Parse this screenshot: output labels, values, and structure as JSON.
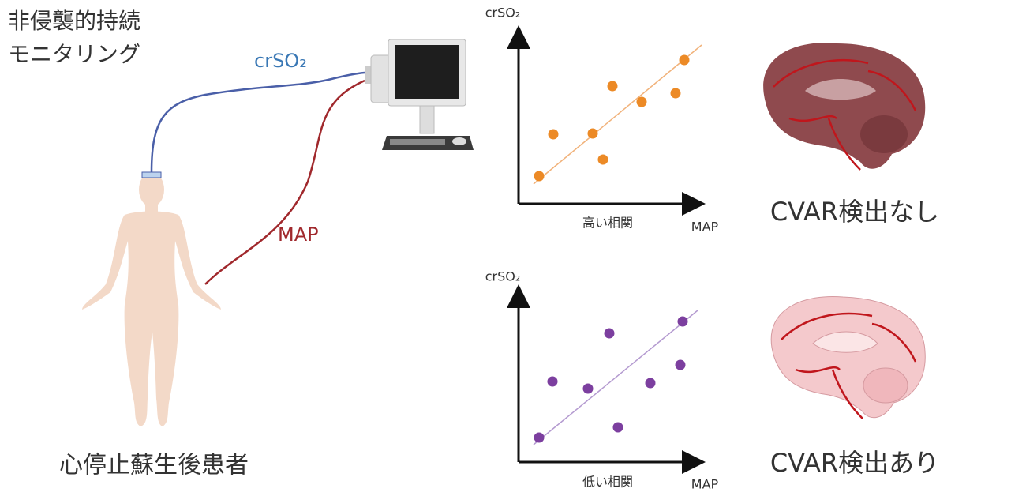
{
  "header": {
    "title_lines": [
      "非侵襲的持続",
      "モニタリング"
    ]
  },
  "cables": {
    "signal": "crSO₂",
    "pressure": "MAP"
  },
  "patient": {
    "label": "心停止蘇生後患者"
  },
  "panels": [
    {
      "y_label": "crSO₂",
      "x_label": "MAP",
      "caption": "高い相関",
      "result": "CVAR検出なし"
    },
    {
      "y_label": "crSO₂",
      "x_label": "MAP",
      "caption": "低い相関",
      "result": "CVAR検出あり"
    }
  ]
}
